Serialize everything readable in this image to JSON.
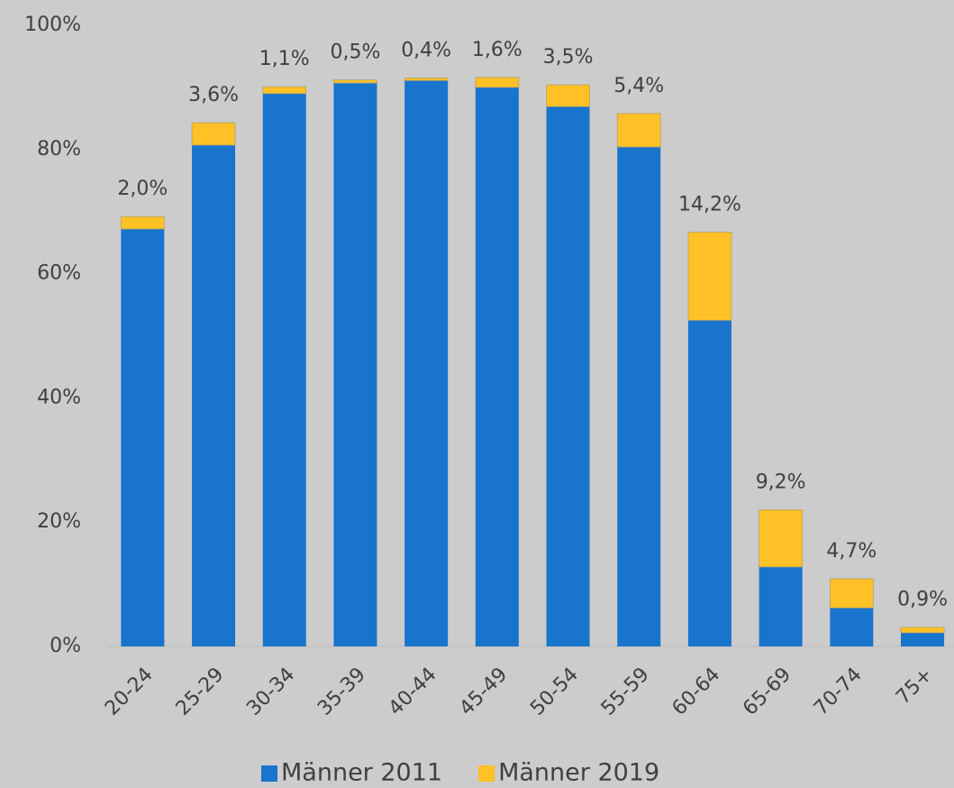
{
  "chart_data": {
    "type": "stacked_bar",
    "categories": [
      "20-24",
      "25-29",
      "30-34",
      "35-39",
      "40-44",
      "45-49",
      "50-54",
      "55-59",
      "60-64",
      "65-69",
      "70-74",
      "75+"
    ],
    "series": [
      {
        "name": "Männer 2011",
        "color": "#1874cd",
        "values": [
          67.2,
          80.7,
          89.0,
          90.7,
          91.1,
          90.0,
          86.9,
          80.4,
          52.5,
          12.8,
          6.2,
          2.2
        ]
      },
      {
        "name": "Männer 2019",
        "color": "#ffc125",
        "values": [
          2.0,
          3.6,
          1.1,
          0.5,
          0.4,
          1.6,
          3.5,
          5.4,
          14.2,
          9.2,
          4.7,
          0.9
        ],
        "value_labels": [
          "2,0%",
          "3,6%",
          "1,1%",
          "0,5%",
          "0,4%",
          "1,6%",
          "3,5%",
          "5,4%",
          "14,2%",
          "9,2%",
          "4,7%",
          "0,9%"
        ]
      }
    ],
    "ylim": [
      0,
      100
    ],
    "yticks": [
      {
        "value": 0,
        "label": "0%"
      },
      {
        "value": 20,
        "label": "20%"
      },
      {
        "value": 40,
        "label": "40%"
      },
      {
        "value": 60,
        "label": "60%"
      },
      {
        "value": 80,
        "label": "80%"
      },
      {
        "value": 100,
        "label": "100%"
      }
    ],
    "legend": "bottom"
  }
}
